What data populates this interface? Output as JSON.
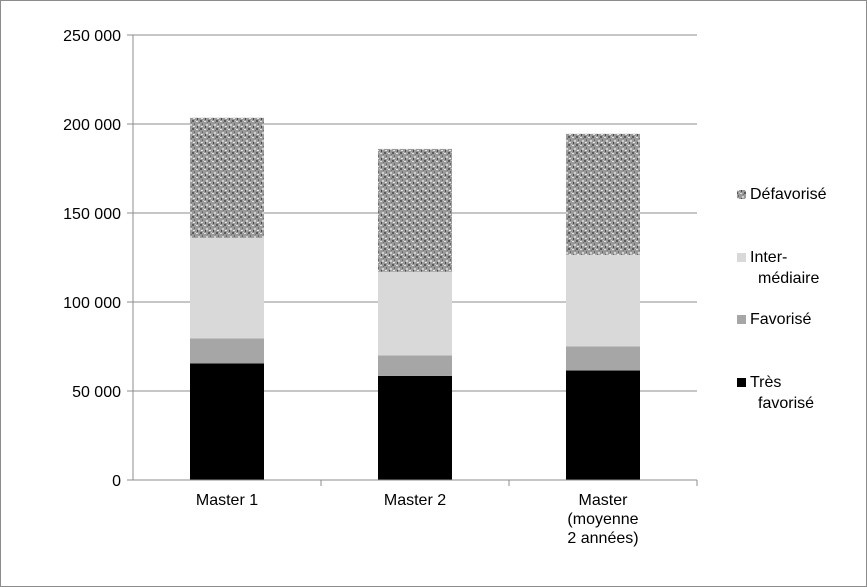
{
  "chart_data": {
    "type": "bar",
    "stacked": true,
    "categories": [
      [
        "Master 1"
      ],
      [
        "Master 2"
      ],
      [
        "Master",
        "(moyenne",
        "2 années)"
      ]
    ],
    "series": [
      {
        "name": "Très favorisé",
        "legend_lines": [
          "Très",
          "favorisé"
        ],
        "color": "#000000",
        "pattern": "solid",
        "values": [
          65500,
          58500,
          61500
        ]
      },
      {
        "name": "Favorisé",
        "legend_lines": [
          "Favorisé"
        ],
        "color": "#a6a6a6",
        "pattern": "solid",
        "values": [
          14000,
          11500,
          13500
        ]
      },
      {
        "name": "Inter-médiaire",
        "legend_lines": [
          "Inter-",
          "médiaire"
        ],
        "color": "#d9d9d9",
        "pattern": "solid",
        "values": [
          56500,
          47000,
          51500
        ]
      },
      {
        "name": "Défavorisé",
        "legend_lines": [
          "Défavorisé"
        ],
        "color": "#8c8c8c",
        "pattern": "speckled",
        "values": [
          67500,
          69000,
          68000
        ]
      }
    ],
    "ylim": [
      0,
      250000
    ],
    "yticks": [
      0,
      50000,
      100000,
      150000,
      200000,
      250000
    ],
    "ytick_labels": [
      "0",
      "50 000",
      "100 000",
      "150 000",
      "200 000",
      "250 000"
    ],
    "grid": true,
    "legend": "right",
    "title": "",
    "xlabel": "",
    "ylabel": ""
  }
}
